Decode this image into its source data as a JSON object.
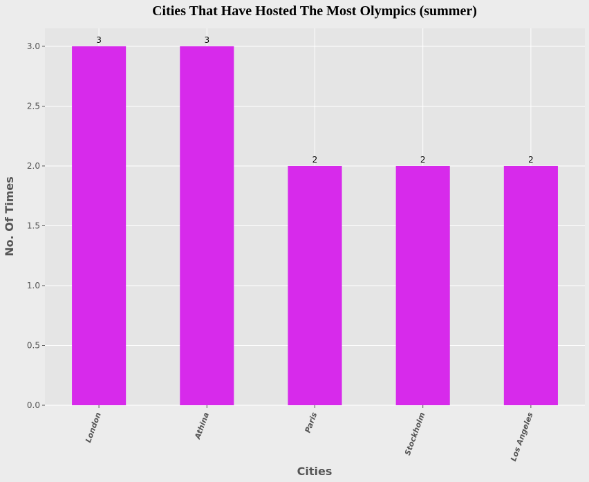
{
  "chart_data": {
    "type": "bar",
    "title": "Cities That Have Hosted The Most Olympics (summer)",
    "xlabel": "Cities",
    "ylabel": "No. Of Times",
    "categories": [
      "London",
      "Athina",
      "Paris",
      "Stockholm",
      "Los Angeles"
    ],
    "values": [
      3,
      3,
      2,
      2,
      2
    ],
    "data_labels": [
      "3",
      "3",
      "2",
      "2",
      "2"
    ],
    "ylim": [
      0,
      3.15
    ],
    "yticks": [
      0.0,
      0.5,
      1.0,
      1.5,
      2.0,
      2.5,
      3.0
    ],
    "ytick_labels": [
      "0.0",
      "0.5",
      "1.0",
      "1.5",
      "2.0",
      "2.5",
      "3.0"
    ],
    "grid": true,
    "colors": {
      "bar": "#d72aeb",
      "plot_background": "#e5e5e5",
      "figure_background": "#ececec",
      "grid": "#ffffff"
    }
  }
}
